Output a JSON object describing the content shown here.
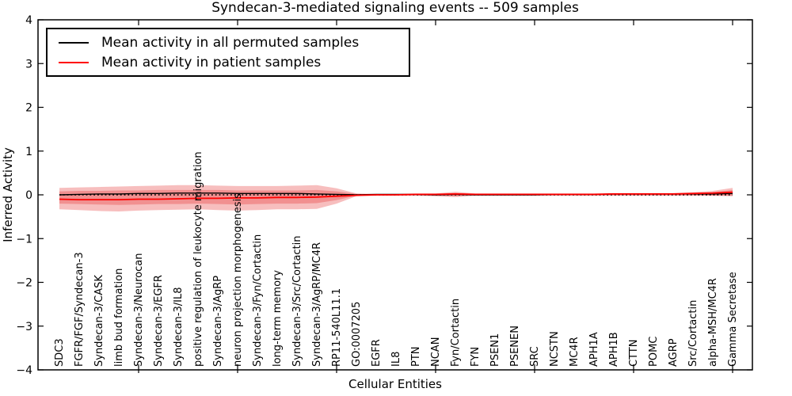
{
  "title": "Syndecan-3-mediated signaling events -- 509 samples",
  "chart_data": {
    "type": "line",
    "title": "Syndecan-3-mediated signaling events -- 509 samples",
    "xlabel": "Cellular Entities",
    "ylabel": "Inferred Activity",
    "ylim": [
      -4,
      4
    ],
    "ytick_values": [
      4,
      3,
      2,
      1,
      0,
      -1,
      -2,
      -3,
      -4
    ],
    "xtick_values": [
      5,
      10,
      15,
      20,
      25,
      30,
      35
    ],
    "grid": false,
    "legend_position": "upper-left",
    "categories": [
      "SDC3",
      "FGFR/FGF/Syndecan-3",
      "Syndecan-3/CASK",
      "limb bud formation",
      "Syndecan-3/Neurocan",
      "Syndecan-3/EGFR",
      "Syndecan-3/IL8",
      "positive regulation of leukocyte migration",
      "Syndecan-3/AgRP",
      "neuron projection morphogenesis",
      "Syndecan-3/Fyn/Cortactin",
      "long-term memory",
      "Syndecan-3/Src/Cortactin",
      "Syndecan-3/AgRP/MC4R",
      "RP11-540L11.1",
      "GO:0007205",
      "EGFR",
      "IL8",
      "PTN",
      "NCAN",
      "Fyn/Cortactin",
      "FYN",
      "PSEN1",
      "PSENEN",
      "SRC",
      "NCSTN",
      "MC4R",
      "APH1A",
      "APH1B",
      "CTTN",
      "POMC",
      "AGRP",
      "Src/Cortactin",
      "alpha-MSH/MC4R",
      "Gamma Secretase"
    ],
    "series": [
      {
        "name": "Mean activity in all permuted samples",
        "color": "#000000",
        "values": [
          0.0,
          0.01,
          0.02,
          0.02,
          0.03,
          0.03,
          0.04,
          0.04,
          0.04,
          0.03,
          0.03,
          0.03,
          0.03,
          0.02,
          0.01,
          0.0,
          0.01,
          0.01,
          0.01,
          0.0,
          0.01,
          0.0,
          0.0,
          0.0,
          0.0,
          0.01,
          0.01,
          0.01,
          0.02,
          0.02,
          0.02,
          0.02,
          0.02,
          0.02,
          0.03
        ]
      },
      {
        "name": "Mean activity in patient samples",
        "color": "#ff0000",
        "values": [
          -0.1,
          -0.11,
          -0.11,
          -0.11,
          -0.1,
          -0.1,
          -0.09,
          -0.08,
          -0.08,
          -0.07,
          -0.07,
          -0.06,
          -0.06,
          -0.05,
          -0.03,
          -0.01,
          0.0,
          0.0,
          0.01,
          0.01,
          0.02,
          0.01,
          0.01,
          0.01,
          0.01,
          0.01,
          0.01,
          0.01,
          0.02,
          0.02,
          0.02,
          0.02,
          0.03,
          0.04,
          0.06
        ]
      }
    ],
    "bands": [
      {
        "name": "outer-std-band",
        "color": "#e62828",
        "opacity": 0.3,
        "high": [
          0.16,
          0.17,
          0.18,
          0.19,
          0.2,
          0.21,
          0.22,
          0.22,
          0.21,
          0.2,
          0.2,
          0.2,
          0.21,
          0.22,
          0.15,
          0.03,
          0.02,
          0.02,
          0.03,
          0.03,
          0.07,
          0.03,
          0.03,
          0.03,
          0.03,
          0.03,
          0.03,
          0.03,
          0.04,
          0.04,
          0.04,
          0.04,
          0.06,
          0.09,
          0.16
        ],
        "low": [
          -0.33,
          -0.35,
          -0.37,
          -0.38,
          -0.36,
          -0.35,
          -0.34,
          -0.33,
          -0.35,
          -0.36,
          -0.35,
          -0.33,
          -0.33,
          -0.32,
          -0.2,
          -0.03,
          -0.02,
          -0.02,
          -0.02,
          -0.03,
          -0.05,
          -0.02,
          -0.02,
          -0.02,
          -0.02,
          -0.02,
          -0.02,
          -0.02,
          -0.02,
          -0.02,
          -0.02,
          -0.02,
          -0.02,
          -0.02,
          -0.03
        ]
      },
      {
        "name": "inner-std-band",
        "color": "#e62828",
        "opacity": 0.3,
        "high": [
          0.08,
          0.09,
          0.09,
          0.1,
          0.1,
          0.11,
          0.11,
          0.11,
          0.11,
          0.1,
          0.1,
          0.1,
          0.1,
          0.11,
          0.08,
          0.02,
          0.01,
          0.01,
          0.02,
          0.02,
          0.04,
          0.02,
          0.02,
          0.02,
          0.02,
          0.02,
          0.02,
          0.02,
          0.03,
          0.03,
          0.03,
          0.03,
          0.04,
          0.06,
          0.11
        ],
        "low": [
          -0.2,
          -0.21,
          -0.22,
          -0.23,
          -0.22,
          -0.21,
          -0.21,
          -0.2,
          -0.21,
          -0.22,
          -0.21,
          -0.2,
          -0.2,
          -0.19,
          -0.12,
          -0.02,
          -0.01,
          -0.01,
          -0.01,
          -0.02,
          -0.03,
          -0.01,
          -0.01,
          -0.01,
          -0.01,
          -0.01,
          -0.01,
          -0.01,
          -0.01,
          -0.01,
          -0.01,
          -0.01,
          -0.01,
          -0.02,
          -0.02
        ]
      }
    ],
    "zero_line": {
      "y": 0,
      "style": "dotted",
      "color": "#000000"
    }
  }
}
